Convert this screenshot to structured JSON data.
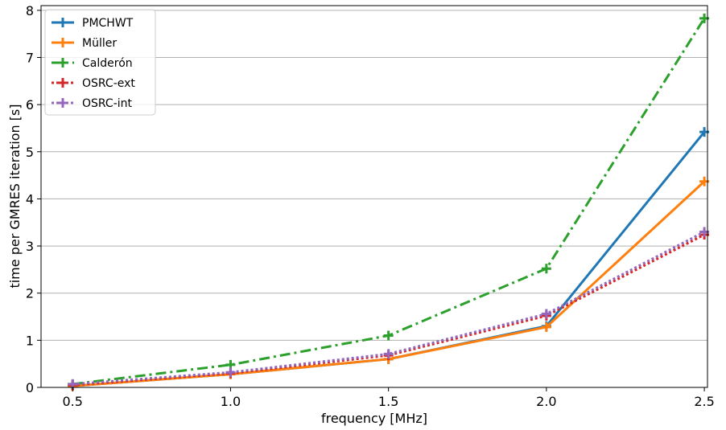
{
  "chart_data": {
    "type": "line",
    "title": "",
    "xlabel": "frequency [MHz]",
    "ylabel": "time per GMRES iteration [s]",
    "x": [
      0.5,
      1.0,
      1.5,
      2.0,
      2.5
    ],
    "x_ticks": [
      "0.5",
      "1.0",
      "1.5",
      "2.0",
      "2.5"
    ],
    "y_ticks": [
      "0",
      "1",
      "2",
      "3",
      "4",
      "5",
      "6",
      "7",
      "8"
    ],
    "xlim": [
      0.4,
      2.51
    ],
    "ylim": [
      0,
      8.1
    ],
    "grid": "horizontal",
    "legend_position": "top-left",
    "series": [
      {
        "name": "PMCHWT",
        "values": [
          0.03,
          0.28,
          0.6,
          1.3,
          5.42
        ],
        "color": "#1f77b4",
        "linestyle": "solid"
      },
      {
        "name": "Müller",
        "values": [
          0.03,
          0.28,
          0.6,
          1.28,
          4.37
        ],
        "color": "#ff7f0e",
        "linestyle": "solid"
      },
      {
        "name": "Calderón",
        "values": [
          0.07,
          0.48,
          1.1,
          2.52,
          7.83
        ],
        "color": "#2ca02c",
        "linestyle": "dashdot"
      },
      {
        "name": "OSRC-ext",
        "values": [
          0.05,
          0.3,
          0.68,
          1.52,
          3.24
        ],
        "color": "#d62728",
        "linestyle": "dotted"
      },
      {
        "name": "OSRC-int",
        "values": [
          0.07,
          0.32,
          0.71,
          1.56,
          3.3
        ],
        "color": "#9467bd",
        "linestyle": "dotted"
      }
    ]
  }
}
